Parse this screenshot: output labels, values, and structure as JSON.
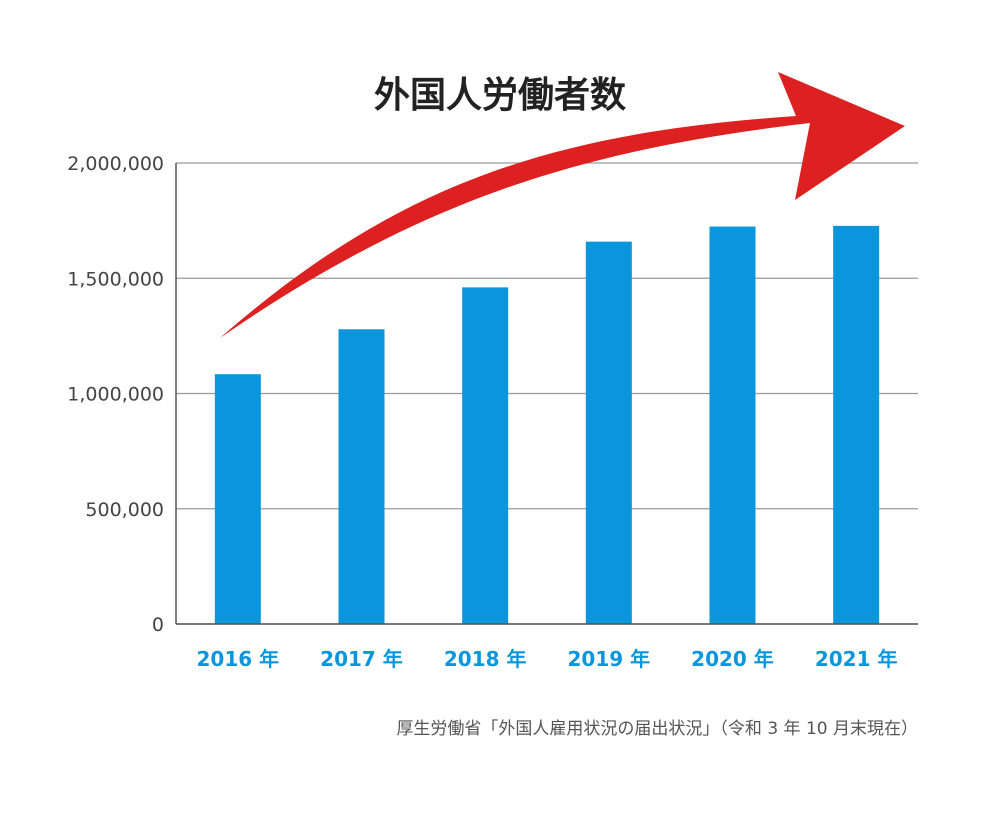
{
  "chart_data": {
    "type": "bar",
    "title": "外国人労働者数",
    "categories": [
      "2016 年",
      "2017 年",
      "2018 年",
      "2019 年",
      "2020 年",
      "2021 年"
    ],
    "values": [
      1083769,
      1278670,
      1460463,
      1658804,
      1724328,
      1727221
    ],
    "yticks": [
      "0",
      "500,000",
      "1,000,000",
      "1,500,000",
      "2,000,000"
    ],
    "ylim": [
      0,
      2000000
    ],
    "grid": true,
    "colors": {
      "bar": "#0a96dc",
      "xtick": "#0a96dc",
      "arrow": "#dd2020",
      "grid": "#9a9a9a",
      "axis": "#555555"
    },
    "annotation": "厚生労働省「外国人雇用状況の届出状況」（令和 3 年 10 月末現在）"
  }
}
